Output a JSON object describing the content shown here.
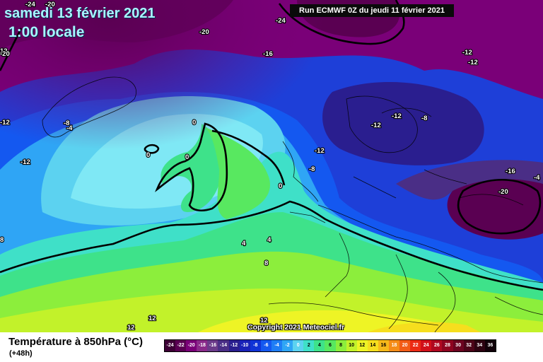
{
  "header": {
    "date": "samedi 13 février 2021",
    "time": "1:00 locale",
    "run": "Run ECMWF 0Z du jeudi 11 février 2021"
  },
  "map": {
    "copyright": "Copyright 2021 Meteociel.fr",
    "isotherm_labels": [
      "-24",
      "-20",
      "-24",
      "-20",
      "-16",
      "-12",
      "-12",
      "-12",
      "-12",
      "-8",
      "-12",
      "-8",
      "-4",
      "-12",
      "-16",
      "-20",
      "-8",
      "-4",
      "0",
      "0",
      "0",
      "0",
      "4",
      "4",
      "8",
      "12",
      "12",
      "12",
      "8",
      "12",
      "-20",
      "-12",
      "4",
      "4"
    ]
  },
  "legend": {
    "title": "Température à 850hPa (°C)",
    "subtitle": "(+48h)",
    "scale": [
      {
        "value": "-24",
        "color": "#3d0035"
      },
      {
        "value": "-22",
        "color": "#5a0052"
      },
      {
        "value": "-20",
        "color": "#7a0078"
      },
      {
        "value": "-18",
        "color": "#8a2a8a"
      },
      {
        "value": "-16",
        "color": "#6b3a8a"
      },
      {
        "value": "-14",
        "color": "#4a2e86"
      },
      {
        "value": "-12",
        "color": "#2a1e8f"
      },
      {
        "value": "-10",
        "color": "#1a22b8"
      },
      {
        "value": "-8",
        "color": "#0f33d6"
      },
      {
        "value": "-6",
        "color": "#1458f0"
      },
      {
        "value": "-4",
        "color": "#1e7df5"
      },
      {
        "value": "-2",
        "color": "#2fa5f5"
      },
      {
        "value": "0",
        "color": "#5cd2f0"
      },
      {
        "value": "2",
        "color": "#3fe0c8"
      },
      {
        "value": "4",
        "color": "#3ee28a"
      },
      {
        "value": "6",
        "color": "#58e860"
      },
      {
        "value": "8",
        "color": "#8cee3c"
      },
      {
        "value": "10",
        "color": "#c2f22a"
      },
      {
        "value": "12",
        "color": "#eef425"
      },
      {
        "value": "14",
        "color": "#f6de1e"
      },
      {
        "value": "16",
        "color": "#f6b81a"
      },
      {
        "value": "18",
        "color": "#f58c18"
      },
      {
        "value": "20",
        "color": "#f25c16"
      },
      {
        "value": "22",
        "color": "#ec2a14"
      },
      {
        "value": "24",
        "color": "#d2101a"
      },
      {
        "value": "26",
        "color": "#b00820"
      },
      {
        "value": "28",
        "color": "#8e0420"
      },
      {
        "value": "30",
        "color": "#6c0420"
      },
      {
        "value": "32",
        "color": "#4c0418"
      },
      {
        "value": "34",
        "color": "#2c0210"
      },
      {
        "value": "36",
        "color": "#100008"
      }
    ]
  }
}
